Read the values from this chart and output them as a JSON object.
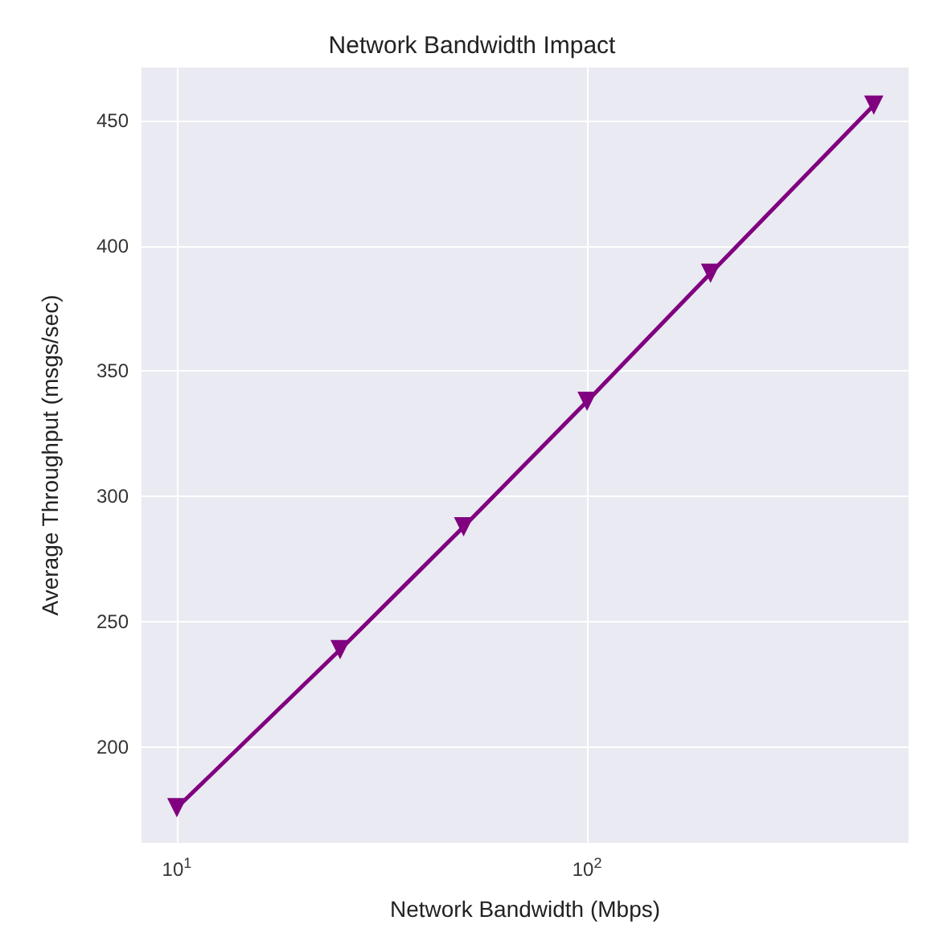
{
  "chart_data": {
    "type": "line",
    "title": "Network Bandwidth Impact",
    "xlabel": "Network Bandwidth (Mbps)",
    "ylabel": "Average Throughput (msgs/sec)",
    "x": [
      10,
      25,
      50,
      100,
      200,
      500
    ],
    "series": [
      {
        "color": "#800080",
        "values": [
          176,
          239,
          288,
          338,
          389,
          456
        ]
      }
    ],
    "log": "x",
    "xlim": [
      8.2,
      608
    ],
    "xticks": [
      {
        "value": 10,
        "label": "10$^{1}$"
      },
      {
        "value": 100,
        "label": "10$^{2}$"
      }
    ],
    "ylim": [
      162,
      471
    ],
    "yticks": [
      200,
      250,
      300,
      350,
      400,
      450
    ],
    "grid": true,
    "marker": "triangle",
    "line_style": "solid"
  }
}
